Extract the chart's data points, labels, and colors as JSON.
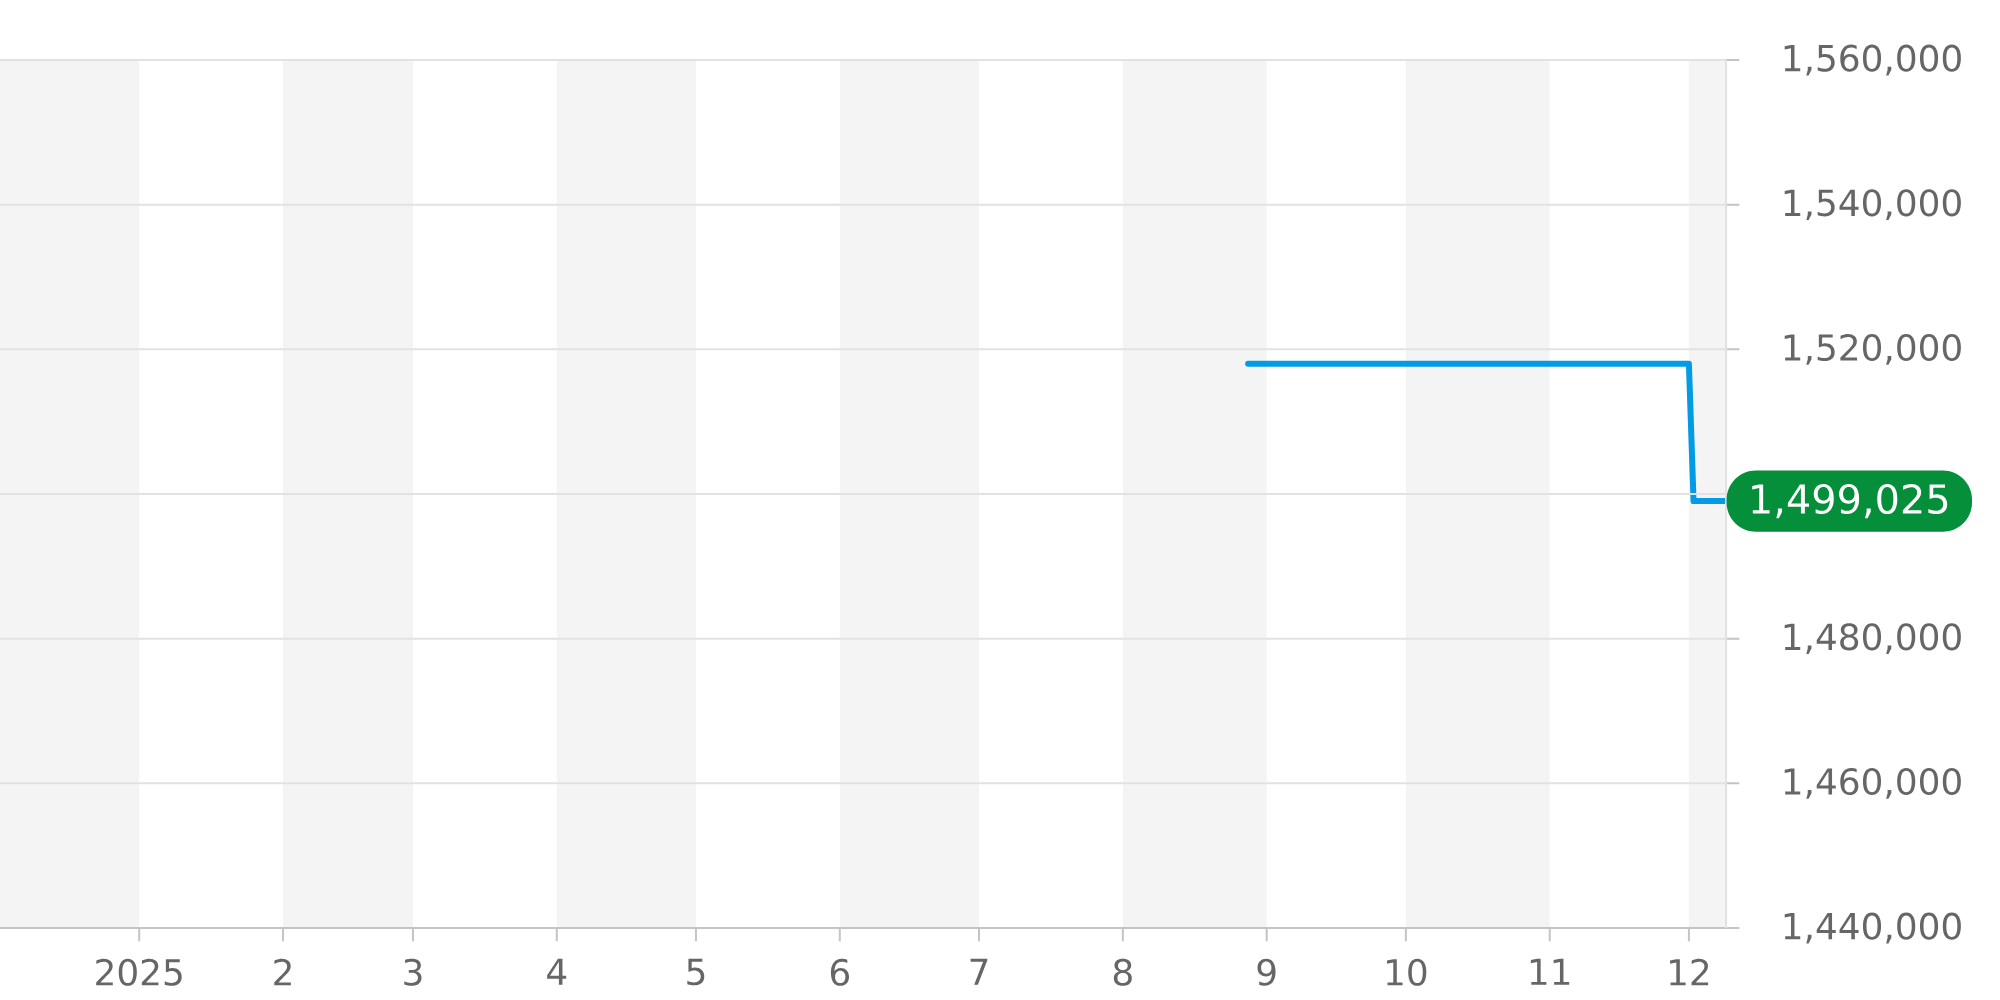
{
  "chart_data": {
    "type": "line",
    "x": [
      "2025-08-28",
      "2025-12-01",
      "2025-12-02",
      "2025-12-09"
    ],
    "series": [
      {
        "color": "#039be5",
        "values": [
          1518000,
          1518000,
          1499025,
          1499025
        ],
        "value_labels": [
          null,
          null,
          null,
          "1,499,025"
        ]
      }
    ],
    "xlim": [
      "2024-12-02",
      "2025-12-09"
    ],
    "xticks": [
      {
        "value": "2025-01",
        "label": "2025"
      },
      {
        "value": "2025-02",
        "label": "2"
      },
      {
        "value": "2025-03",
        "label": "3"
      },
      {
        "value": "2025-04",
        "label": "4"
      },
      {
        "value": "2025-05",
        "label": "5"
      },
      {
        "value": "2025-06",
        "label": "6"
      },
      {
        "value": "2025-07",
        "label": "7"
      },
      {
        "value": "2025-08",
        "label": "8"
      },
      {
        "value": "2025-09",
        "label": "9"
      },
      {
        "value": "2025-10",
        "label": "10"
      },
      {
        "value": "2025-11",
        "label": "11"
      },
      {
        "value": "2025-12",
        "label": "12"
      }
    ],
    "ylim": [
      1440000,
      1560000
    ],
    "yticks": [
      {
        "value": 1440000,
        "label": "1,440,000"
      },
      {
        "value": 1460000,
        "label": "1,460,000"
      },
      {
        "value": 1480000,
        "label": "1,480,000"
      },
      {
        "value": 1500000,
        "label": null
      },
      {
        "value": 1520000,
        "label": "1,520,000"
      },
      {
        "value": 1540000,
        "label": "1,540,000"
      },
      {
        "value": 1560000,
        "label": "1,560,000"
      }
    ],
    "grid": "y",
    "bands": [
      {
        "axis": "x",
        "from": "2024-12-02",
        "to": "2025-01",
        "color": "#f4f4f4"
      },
      {
        "axis": "x",
        "from": "2025-02",
        "to": "2025-03",
        "color": "#f4f4f4"
      },
      {
        "axis": "x",
        "from": "2025-04",
        "to": "2025-05",
        "color": "#f4f4f4"
      },
      {
        "axis": "x",
        "from": "2025-06",
        "to": "2025-07",
        "color": "#f4f4f4"
      },
      {
        "axis": "x",
        "from": "2025-08",
        "to": "2025-09",
        "color": "#f4f4f4"
      },
      {
        "axis": "x",
        "from": "2025-10",
        "to": "2025-11",
        "color": "#f4f4f4"
      },
      {
        "axis": "x",
        "from": "2025-12",
        "to": "2025-12-09",
        "color": "#f4f4f4"
      }
    ]
  }
}
